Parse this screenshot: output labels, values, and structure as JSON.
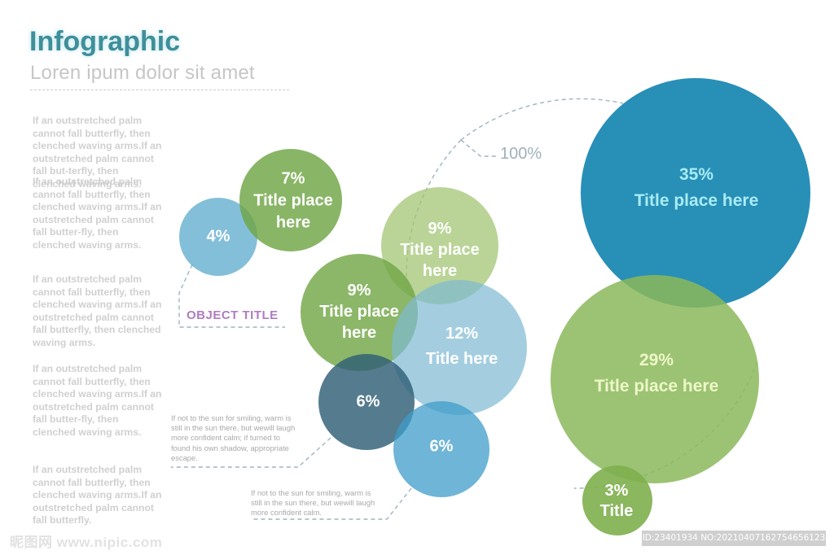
{
  "header": {
    "title": "Infographic",
    "subtitle": "Loren ipum dolor sit amet"
  },
  "paragraphs": [
    "If an outstretched palm cannot fall butterfly, then clenched waving arms.If an outstretched palm cannot fall but-terfly, then clenched waving arms.",
    "If an outstretched palm cannot fall butterfly, then clenched waving arms.If an outstretched palm cannot fall butter-fly, then clenched waving arms.",
    "If an outstretched palm cannot fall butterfly, then clenched waving arms.If an outstretched palm cannot fall butterfly, then clenched waving arms.",
    "If an outstretched palm cannot fall butterfly, then clenched waving arms.If an outstretched palm cannot fall butter-fly, then clenched waving arms.",
    "If an outstretched palm cannot fall butterfly, then clenched waving arms.If an outstretched palm cannot fall butterfly."
  ],
  "object_title": "OBJECT TITLE",
  "total_label": "100%",
  "notes": [
    "If not to the sun for smiling, warm is still in the sun there, but wewill laugh more confident calm; if turned to found his own shadow, appropriate escape.",
    "If not to the sun for smiling, warm is still in the sun there, but wewill laugh more confident calm."
  ],
  "bubbles": [
    {
      "value": "4%",
      "label": "",
      "color": "#5ba9cc",
      "text_color": "#ffffff"
    },
    {
      "value": "7%",
      "label": "Title place here",
      "color": "#6fa544",
      "text_color": "#ffffff"
    },
    {
      "value": "9%",
      "label": "Title place here",
      "color": "#9fc46f",
      "text_color": "#ffffff"
    },
    {
      "value": "9%",
      "label": "Title place here",
      "color": "#6fa544",
      "text_color": "#ffffff"
    },
    {
      "value": "12%",
      "label": "Title here",
      "color": "#7eb9d3",
      "text_color": "#ffffff"
    },
    {
      "value": "6%",
      "label": "",
      "color": "#2f5f75",
      "text_color": "#ffffff"
    },
    {
      "value": "6%",
      "label": "",
      "color": "#3d9cc9",
      "text_color": "#ffffff"
    },
    {
      "value": "35%",
      "label": "Title place here",
      "color": "#1c89b3",
      "text_color": "#a8ecf4"
    },
    {
      "value": "29%",
      "label": "Title place here",
      "color": "#8bb85a",
      "text_color": "#eef7c9"
    },
    {
      "value": "3%",
      "label": "Title",
      "color": "#7eaf4e",
      "text_color": "#ffffff"
    }
  ],
  "footer": {
    "watermark": "昵图网 www.nipic.com",
    "id_text": "ID:23401934 NO:20210407162754656123"
  }
}
